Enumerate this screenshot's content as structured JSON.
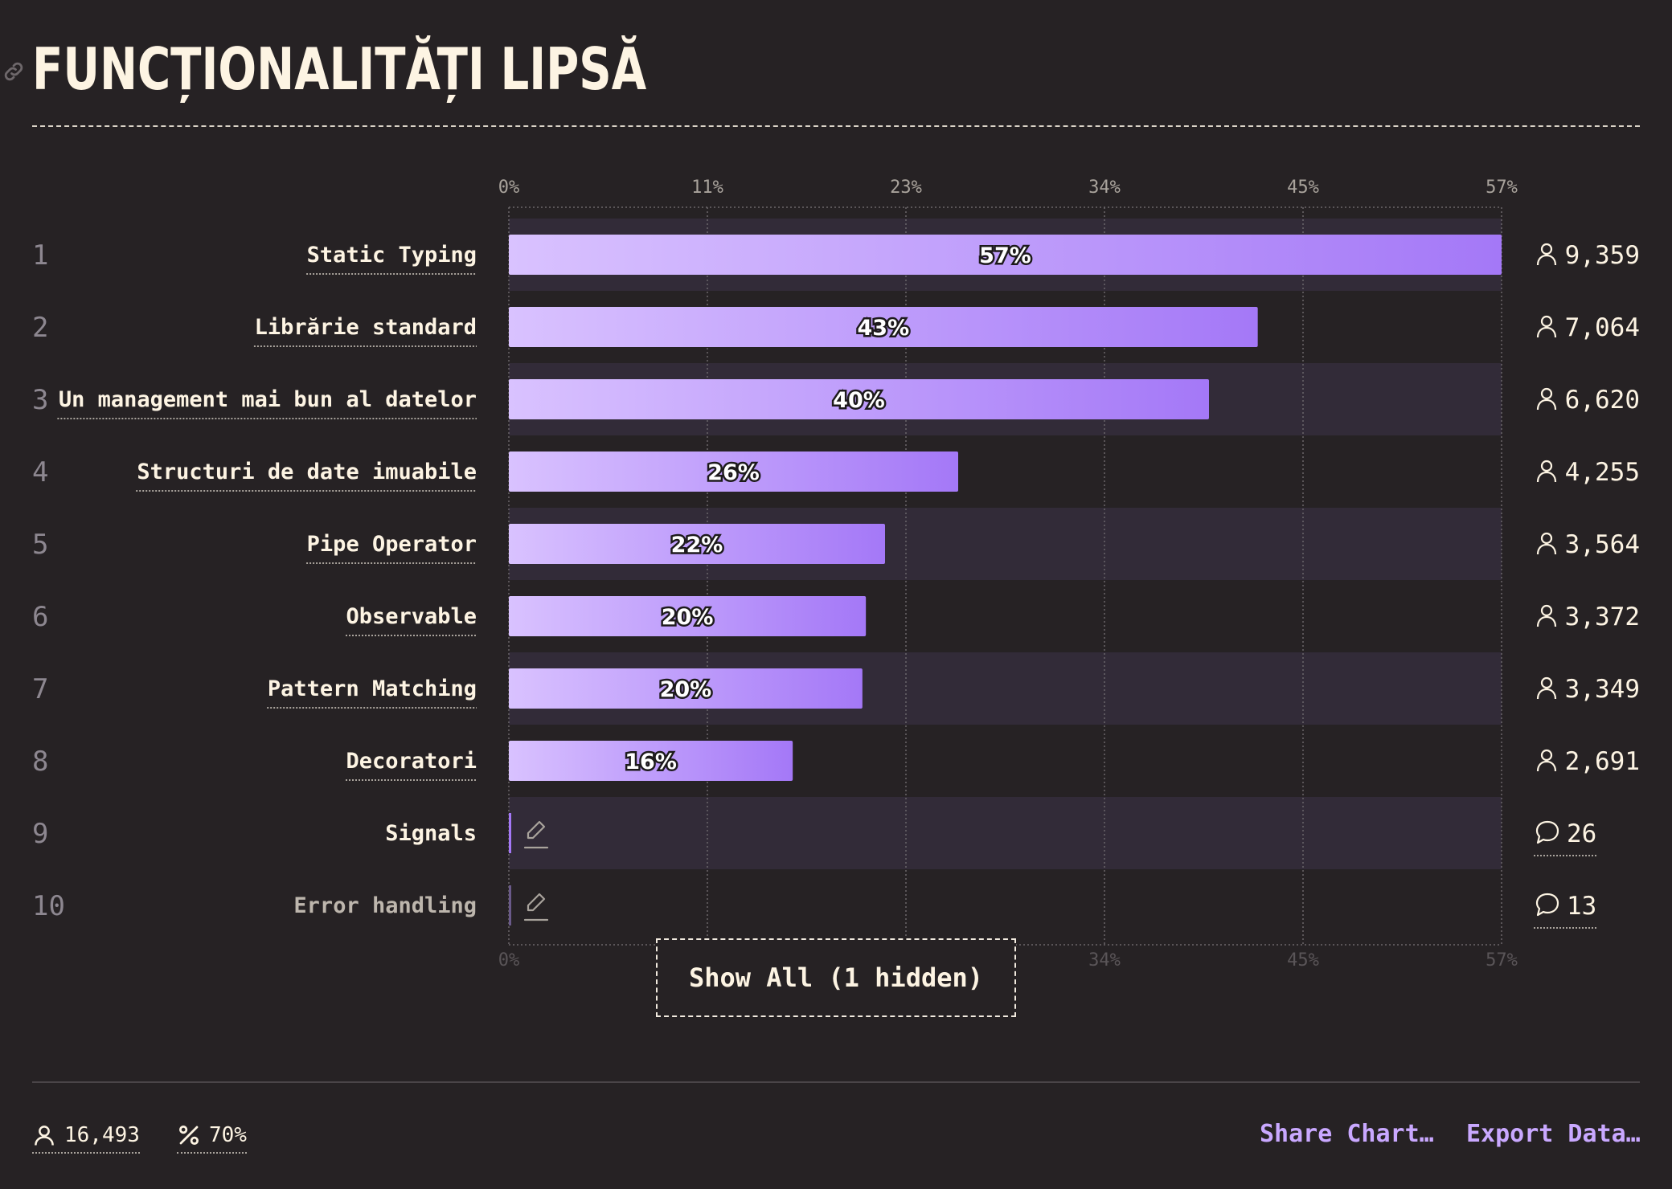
{
  "title": "FUNCȚIONALITĂȚI LIPSĂ",
  "show_all_label": "Show All (1 hidden)",
  "footer": {
    "respondents": "16,493",
    "percent": "70%",
    "share_label": "Share Chart…",
    "export_label": "Export Data…"
  },
  "colors": {
    "background": "#262224",
    "bar_start": "#d9c2ff",
    "bar_end": "#a478f7",
    "row_stripe": "#322b38",
    "text": "#fdf4e3",
    "accent": "#c9a8ff"
  },
  "icons": {
    "title": "link-icon",
    "respondents": "user-icon",
    "comments": "comment-icon",
    "write_in": "pencil-icon",
    "percent": "percent-icon"
  },
  "chart_data": {
    "type": "bar",
    "orientation": "horizontal",
    "xlim": [
      0,
      57
    ],
    "ticks": [
      "0%",
      "11%",
      "23%",
      "34%",
      "45%",
      "57%"
    ],
    "tick_values": [
      0,
      11.4,
      22.8,
      34.2,
      45.6,
      57
    ],
    "grid": true,
    "rows": [
      {
        "rank": "1",
        "label": "Static Typing",
        "value": 57,
        "value_label": "57%",
        "count": "9,359",
        "count_type": "respondents"
      },
      {
        "rank": "2",
        "label": "Librărie standard",
        "value": 43,
        "value_label": "43%",
        "count": "7,064",
        "count_type": "respondents"
      },
      {
        "rank": "3",
        "label": "Un management mai bun al datelor",
        "value": 40.2,
        "value_label": "40%",
        "count": "6,620",
        "count_type": "respondents"
      },
      {
        "rank": "4",
        "label": "Structuri de date imuabile",
        "value": 25.8,
        "value_label": "26%",
        "count": "4,255",
        "count_type": "respondents"
      },
      {
        "rank": "5",
        "label": "Pipe Operator",
        "value": 21.6,
        "value_label": "22%",
        "count": "3,564",
        "count_type": "respondents"
      },
      {
        "rank": "6",
        "label": "Observable",
        "value": 20.5,
        "value_label": "20%",
        "count": "3,372",
        "count_type": "respondents"
      },
      {
        "rank": "7",
        "label": "Pattern Matching",
        "value": 20.3,
        "value_label": "20%",
        "count": "3,349",
        "count_type": "respondents"
      },
      {
        "rank": "8",
        "label": "Decoratori",
        "value": 16.3,
        "value_label": "16%",
        "count": "2,691",
        "count_type": "respondents"
      },
      {
        "rank": "9",
        "label": "Signals",
        "value": 0.16,
        "value_label": "",
        "count": "26",
        "count_type": "comments"
      },
      {
        "rank": "10",
        "label": "Error handling",
        "value": 0.08,
        "value_label": "",
        "count": "13",
        "count_type": "comments"
      }
    ]
  }
}
